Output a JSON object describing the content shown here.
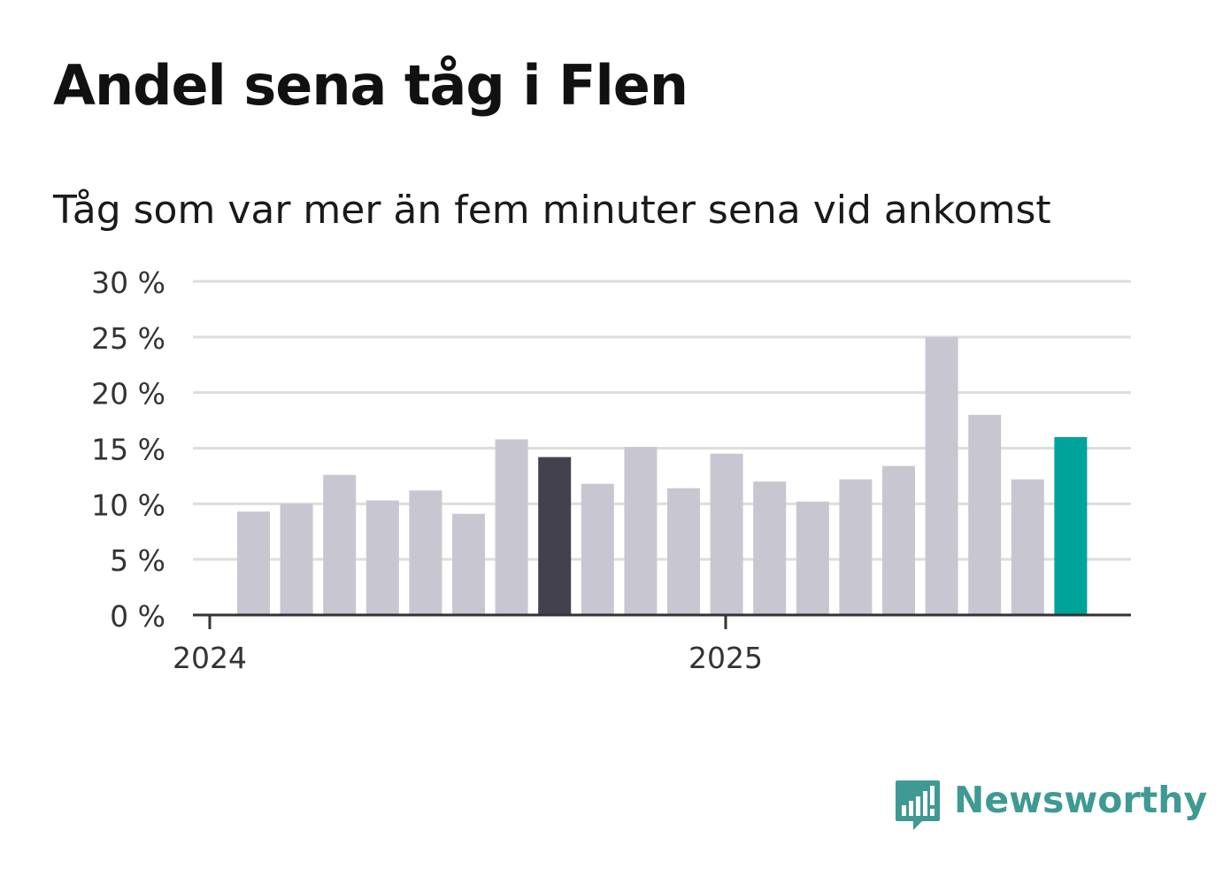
{
  "title": "Andel sena tåg i Flen",
  "subtitle": "Tåg som var mer än fem minuter sena vid ankomst",
  "brand": {
    "name": "Newsworthy",
    "color": "#3e9a93"
  },
  "colors": {
    "bar": "#c8c7d1",
    "highlight_previous": "#43414e",
    "highlight_latest": "#00a39a",
    "grid": "#dddddd",
    "axis": "#333333"
  },
  "chart_data": {
    "type": "bar",
    "ylim": [
      0,
      30
    ],
    "yticks": [
      0,
      5,
      10,
      15,
      20,
      25,
      30
    ],
    "ytick_labels": [
      "0 %",
      "5 %",
      "10 %",
      "15 %",
      "20 %",
      "25 %",
      "30 %"
    ],
    "xtick_labels": [
      {
        "label": "2024",
        "index": 0
      },
      {
        "label": "2025",
        "index": 12
      }
    ],
    "values": [
      9.3,
      10.0,
      12.6,
      10.3,
      11.2,
      9.1,
      15.8,
      14.2,
      11.8,
      15.1,
      11.4,
      14.5,
      12.0,
      10.2,
      12.2,
      13.4,
      25.0,
      18.0,
      12.2,
      16.0
    ],
    "highlight": {
      "7": "highlight_previous",
      "19": "highlight_latest"
    },
    "grid": true
  }
}
